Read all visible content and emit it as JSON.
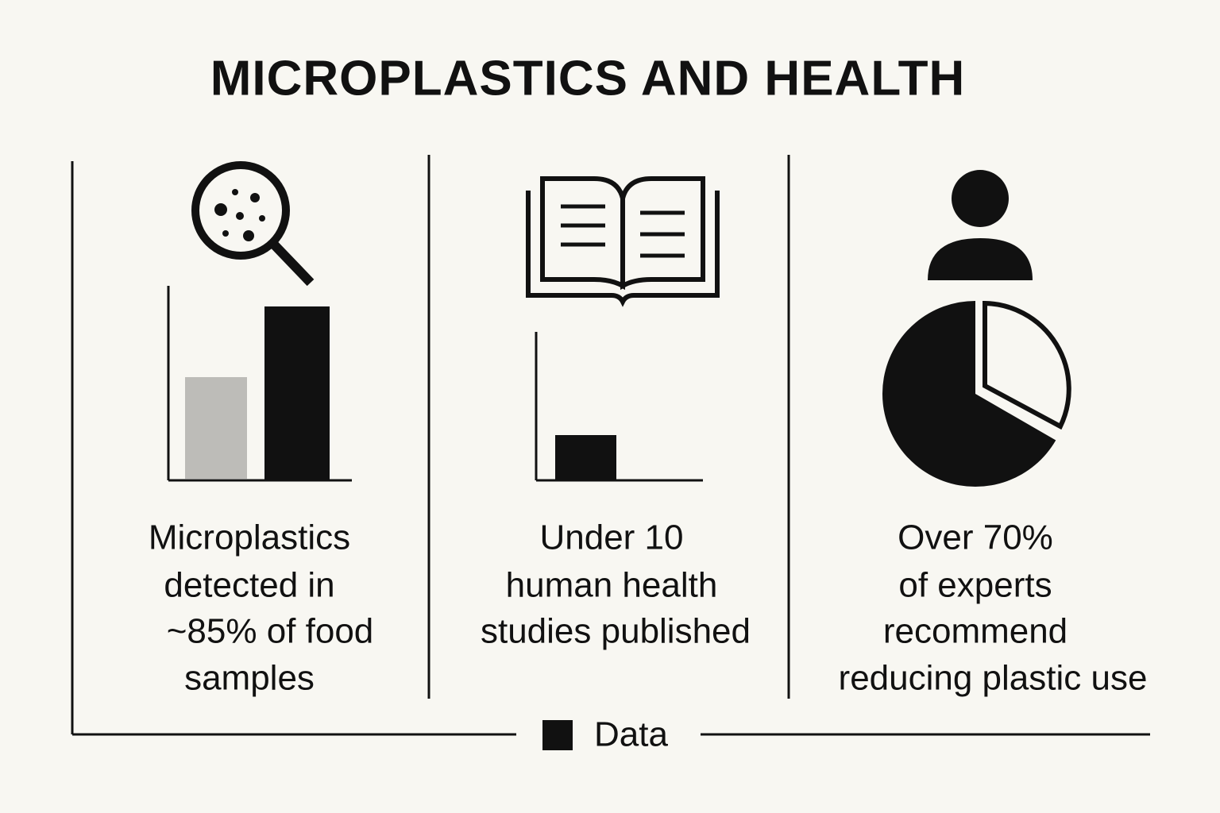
{
  "header": {
    "title": "MICROPLASTICS AND HEALTH"
  },
  "panels": [
    {
      "caption": [
        "Microplastics",
        "detected in",
        "~85% of food",
        "samples"
      ]
    },
    {
      "caption": [
        "Under 10",
        "human health",
        "studies published"
      ]
    },
    {
      "caption": [
        "Over 70%",
        "of experts",
        "recommend",
        "reducing plastic use"
      ]
    }
  ],
  "legend": {
    "label": "Data"
  }
}
